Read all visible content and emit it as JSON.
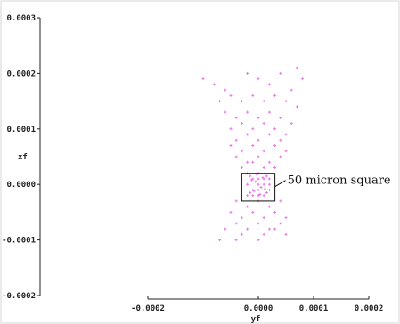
{
  "chart_data": {
    "type": "scatter",
    "title": "",
    "xlabel": "yf",
    "ylabel": "xf",
    "xlim": [
      -0.0002,
      0.0002
    ],
    "ylim": [
      -0.0002,
      0.0003
    ],
    "x_ticks": [
      {
        "value": -0.0002,
        "label": "-0.0002"
      },
      {
        "value": 0.0,
        "label": "0.0000"
      },
      {
        "value": 0.0001,
        "label": "0.0001"
      },
      {
        "value": 0.0002,
        "label": "0.0002"
      }
    ],
    "y_ticks": [
      {
        "value": 0.0003,
        "label": "0.0003"
      },
      {
        "value": 0.0002,
        "label": "0.0002"
      },
      {
        "value": 0.0001,
        "label": "0.0001"
      },
      {
        "value": 0.0,
        "label": "0.0000"
      },
      {
        "value": -0.0001,
        "label": "-0.0001"
      },
      {
        "value": -0.0002,
        "label": "-0.0002"
      }
    ],
    "grid": false,
    "marker": "+",
    "point_color": "#e879e8",
    "box": {
      "x0": -3e-05,
      "x1": 3e-05,
      "y0": -3e-05,
      "y1": 2e-05
    },
    "annotation": {
      "text": "50 micron square"
    },
    "series": [
      {
        "points": [
          [
            -0.0001,
            0.00019
          ],
          [
            -8e-05,
            0.00018
          ],
          [
            -6e-05,
            0.00017
          ],
          [
            -2e-05,
            0.0002
          ],
          [
            0.0,
            0.00019
          ],
          [
            2e-05,
            0.00018
          ],
          [
            4e-05,
            0.0002
          ],
          [
            7e-05,
            0.00021
          ],
          [
            8e-05,
            0.00019
          ],
          [
            6e-05,
            0.00017
          ],
          [
            -7e-05,
            0.00015
          ],
          [
            -5e-05,
            0.00016
          ],
          [
            -3e-05,
            0.00015
          ],
          [
            -1e-05,
            0.00016
          ],
          [
            1e-05,
            0.00015
          ],
          [
            3e-05,
            0.00016
          ],
          [
            5e-05,
            0.00015
          ],
          [
            7e-05,
            0.00014
          ],
          [
            -6e-05,
            0.00013
          ],
          [
            -4e-05,
            0.00012
          ],
          [
            -2e-05,
            0.00013
          ],
          [
            0.0,
            0.00012
          ],
          [
            2e-05,
            0.00013
          ],
          [
            4e-05,
            0.00012
          ],
          [
            6e-05,
            0.00011
          ],
          [
            -5e-05,
            0.0001
          ],
          [
            -3e-05,
            0.00011
          ],
          [
            -1e-05,
            0.0001
          ],
          [
            1e-05,
            0.00011
          ],
          [
            3e-05,
            0.0001
          ],
          [
            5e-05,
            9e-05
          ],
          [
            -4e-05,
            8e-05
          ],
          [
            -2e-05,
            9e-05
          ],
          [
            0.0,
            8e-05
          ],
          [
            2e-05,
            9e-05
          ],
          [
            4e-05,
            8e-05
          ],
          [
            -5e-05,
            7e-05
          ],
          [
            -3e-05,
            6e-05
          ],
          [
            -1e-05,
            7e-05
          ],
          [
            1e-05,
            6e-05
          ],
          [
            3e-05,
            7e-05
          ],
          [
            5e-05,
            6e-05
          ],
          [
            -4e-05,
            5e-05
          ],
          [
            -2e-05,
            4e-05
          ],
          [
            0.0,
            5e-05
          ],
          [
            2e-05,
            4e-05
          ],
          [
            4e-05,
            5e-05
          ],
          [
            -3e-05,
            3e-05
          ],
          [
            -1e-05,
            4e-05
          ],
          [
            1e-05,
            3e-05
          ],
          [
            3e-05,
            3e-05
          ],
          [
            -2e-05,
            2e-05
          ],
          [
            0.0,
            2e-05
          ],
          [
            2e-05,
            1e-05
          ],
          [
            -1e-05,
            1e-05
          ],
          [
            1e-05,
            0.0
          ],
          [
            -2e-05,
            0.0
          ],
          [
            0.0,
            -1e-05
          ],
          [
            2e-05,
            -1e-05
          ],
          [
            -1e-05,
            -2e-05
          ],
          [
            1e-05,
            -2e-05
          ],
          [
            0.0,
            0.0
          ],
          [
            1e-05,
            1e-05
          ],
          [
            -1e-05,
            -1e-05
          ],
          [
            0.0,
            -2e-05
          ],
          [
            -2e-05,
            -2e-05
          ],
          [
            2e-05,
            0.0
          ],
          [
            0.0,
            1e-05
          ],
          [
            -5e-06,
            5e-06
          ],
          [
            5e-06,
            -5e-06
          ],
          [
            -1.5e-05,
            1.5e-05
          ],
          [
            1.5e-05,
            -1.5e-05
          ],
          [
            1.5e-05,
            1.5e-05
          ],
          [
            -1.5e-05,
            -1.5e-05
          ],
          [
            8e-06,
            1.2e-05
          ],
          [
            -8e-06,
            -1.2e-05
          ],
          [
            1.2e-05,
            -8e-06
          ],
          [
            -1.2e-05,
            8e-06
          ],
          [
            3e-06,
            -1.8e-05
          ],
          [
            -3e-06,
            1.8e-05
          ],
          [
            -4e-05,
            -3e-05
          ],
          [
            -2e-05,
            -4e-05
          ],
          [
            0.0,
            -3e-05
          ],
          [
            2e-05,
            -4e-05
          ],
          [
            4e-05,
            -3e-05
          ],
          [
            -5e-05,
            -5e-05
          ],
          [
            -3e-05,
            -6e-05
          ],
          [
            -1e-05,
            -5e-05
          ],
          [
            1e-05,
            -6e-05
          ],
          [
            3e-05,
            -5e-05
          ],
          [
            5e-05,
            -6e-05
          ],
          [
            -4e-05,
            -7e-05
          ],
          [
            -2e-05,
            -8e-05
          ],
          [
            0.0,
            -7e-05
          ],
          [
            2e-05,
            -8e-05
          ],
          [
            4e-05,
            -7e-05
          ],
          [
            -6e-05,
            -8e-05
          ],
          [
            -3e-05,
            -9e-05
          ],
          [
            1e-05,
            -9e-05
          ],
          [
            3e-05,
            -8e-05
          ],
          [
            -7e-05,
            -0.0001
          ],
          [
            -4e-05,
            -0.0001
          ],
          [
            0.0,
            -0.0001
          ],
          [
            5e-05,
            -9e-05
          ]
        ]
      }
    ]
  }
}
